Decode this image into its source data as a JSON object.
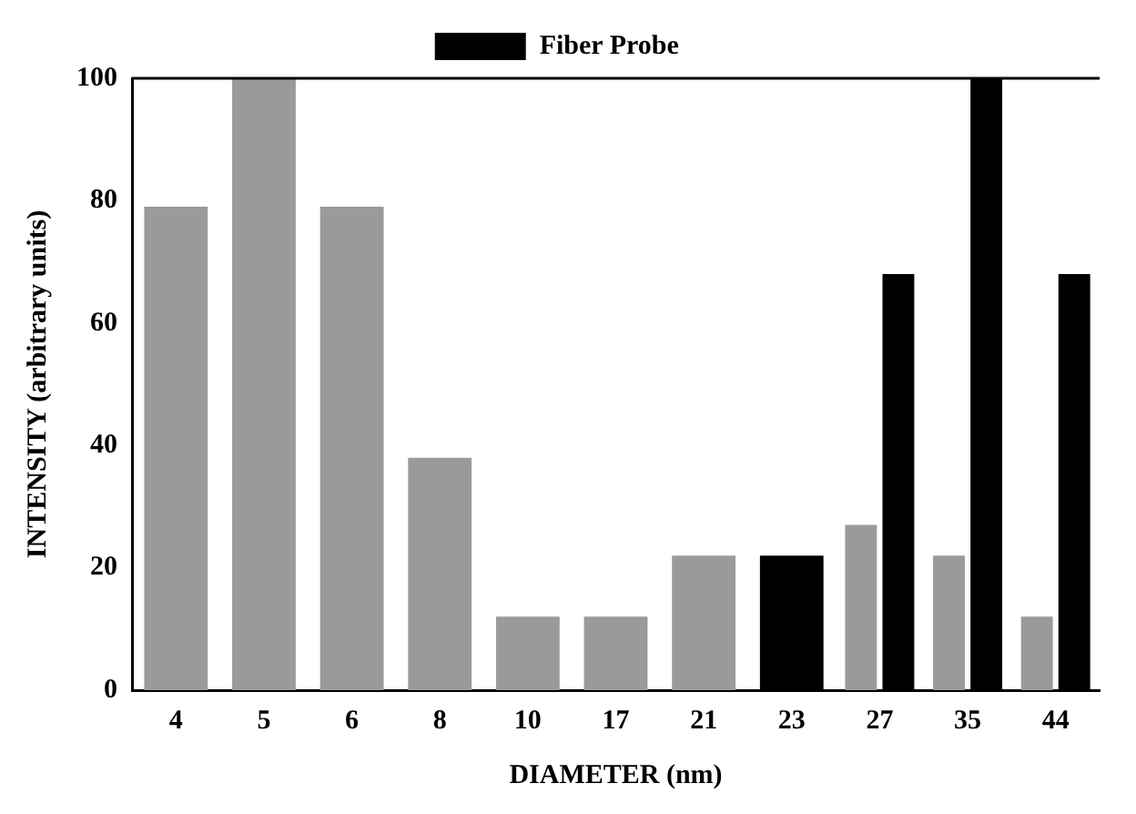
{
  "chart_data": {
    "type": "bar",
    "xlabel": "DIAMETER (nm)",
    "ylabel": "INTENSITY (arbitrary units)",
    "categories": [
      "4",
      "5",
      "6",
      "8",
      "10",
      "17",
      "21",
      "23",
      "27",
      "35",
      "44"
    ],
    "series": [
      {
        "color": "#9a9a9a",
        "values": [
          79,
          100,
          79,
          38,
          12,
          12,
          22,
          null,
          27,
          22,
          12
        ]
      },
      {
        "name": "Fiber Probe",
        "color": "#000000",
        "values": [
          null,
          null,
          null,
          null,
          null,
          null,
          null,
          22,
          68,
          100,
          68
        ]
      }
    ],
    "ylim": [
      0,
      100
    ],
    "yticks": [
      0,
      20,
      40,
      60,
      80,
      100
    ],
    "grid": false,
    "legend": "top"
  }
}
